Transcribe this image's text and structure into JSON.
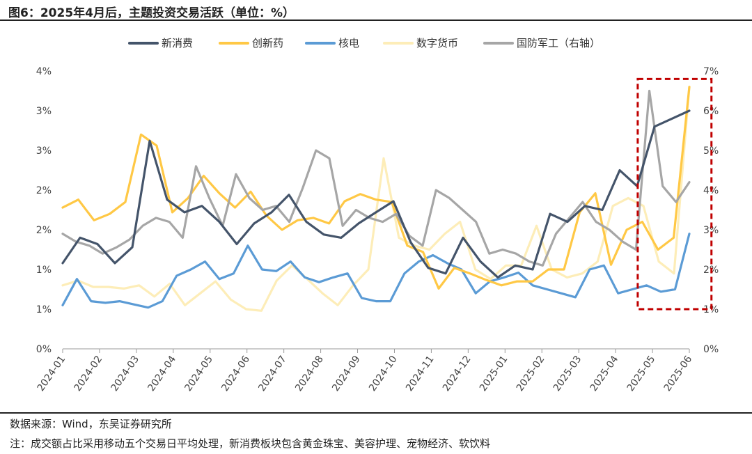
{
  "header": {
    "title": "图6：2025年4月后，主题投资交易活跃（单位：%）"
  },
  "footer": {
    "source": "数据来源：Wind，东吴证券研究所",
    "note": "注：成交额占比采用移动五个交易日平均处理，新消费板块包含黄金珠宝、美容护理、宠物经济、软饮料"
  },
  "colors": {
    "新消费": "#44546a",
    "创新药": "#ffc845",
    "核电": "#5b9bd5",
    "数字货币": "#fdedb8",
    "国防军工": "#a6a6a6",
    "highlight": "#c00000"
  },
  "chart_data": {
    "type": "line",
    "x_labels": [
      "2024-01",
      "2024-02",
      "2024-03",
      "2024-04",
      "2024-05",
      "2024-06",
      "2024-07",
      "2024-08",
      "2024-09",
      "2024-10",
      "2024-11",
      "2024-12",
      "2025-01",
      "2025-02",
      "2025-03",
      "2025-04",
      "2025-05",
      "2025-06"
    ],
    "left_axis": {
      "ticks": [
        "0%",
        "1%",
        "1%",
        "2%",
        "2%",
        "3%",
        "3%",
        "4%"
      ],
      "range": [
        0,
        3.5
      ]
    },
    "right_axis": {
      "ticks": [
        "0%",
        "1%",
        "2%",
        "3%",
        "4%",
        "5%",
        "6%",
        "7%"
      ],
      "range": [
        0,
        7
      ]
    },
    "highlight_box": {
      "x_from": 15.6,
      "x_to": 17.6,
      "y_from": 0.5,
      "y_to": 3.4,
      "axis": "left"
    },
    "series": [
      {
        "name": "新消费",
        "axis": "left",
        "values": [
          1.08,
          1.4,
          1.32,
          1.08,
          1.28,
          2.62,
          1.88,
          1.72,
          1.8,
          1.6,
          1.32,
          1.58,
          1.72,
          1.94,
          1.6,
          1.44,
          1.4,
          1.58,
          1.72,
          1.86,
          1.34,
          1.02,
          0.95,
          1.4,
          1.1,
          0.9,
          1.05,
          1.0,
          1.7,
          1.6,
          1.8,
          1.75,
          2.25,
          2.05,
          2.8,
          2.9,
          3.0
        ]
      },
      {
        "name": "创新药",
        "axis": "left",
        "values": [
          1.78,
          1.88,
          1.62,
          1.7,
          1.85,
          2.7,
          2.56,
          1.72,
          1.9,
          2.18,
          1.96,
          1.78,
          1.98,
          1.68,
          1.5,
          1.62,
          1.65,
          1.58,
          1.86,
          1.95,
          1.88,
          1.85,
          1.3,
          1.22,
          0.76,
          1.02,
          0.95,
          0.87,
          0.8,
          0.85,
          0.85,
          1.0,
          1.0,
          1.72,
          1.96,
          1.06,
          1.5,
          1.6,
          1.25,
          1.4,
          3.3
        ]
      },
      {
        "name": "核电",
        "axis": "left",
        "values": [
          0.55,
          0.88,
          0.6,
          0.58,
          0.6,
          0.56,
          0.52,
          0.6,
          0.92,
          1.0,
          1.1,
          0.88,
          0.95,
          1.3,
          1.0,
          0.98,
          1.1,
          0.9,
          0.84,
          0.9,
          0.95,
          0.64,
          0.6,
          0.6,
          0.95,
          1.1,
          1.18,
          1.08,
          1.0,
          0.7,
          0.85,
          0.9,
          0.96,
          0.8,
          0.75,
          0.7,
          0.65,
          1.0,
          1.05,
          0.7,
          0.75,
          0.8,
          0.72,
          0.75,
          1.45
        ]
      },
      {
        "name": "数字货币",
        "axis": "left",
        "values": [
          0.8,
          0.86,
          0.78,
          0.78,
          0.76,
          0.8,
          0.66,
          0.82,
          0.55,
          0.7,
          0.85,
          0.62,
          0.5,
          0.48,
          0.86,
          1.05,
          0.88,
          0.7,
          0.55,
          0.8,
          1.0,
          2.4,
          1.4,
          1.3,
          1.25,
          1.45,
          1.6,
          1.0,
          0.88,
          1.05,
          1.05,
          1.55,
          1.0,
          0.9,
          0.95,
          1.1,
          1.8,
          1.9,
          1.8,
          1.1,
          0.95,
          3.3
        ]
      },
      {
        "name": "国防军工",
        "axis": "right",
        "values": [
          2.9,
          2.7,
          2.6,
          2.4,
          2.55,
          2.75,
          3.1,
          3.3,
          3.2,
          2.8,
          4.6,
          3.8,
          3.1,
          4.4,
          3.8,
          3.5,
          3.6,
          3.2,
          4.05,
          5.0,
          4.8,
          3.1,
          3.5,
          3.3,
          3.2,
          3.4,
          2.85,
          2.6,
          4.0,
          3.8,
          3.5,
          3.2,
          2.4,
          2.5,
          2.4,
          2.2,
          2.1,
          2.9,
          3.3,
          3.7,
          3.2,
          3.0,
          2.7,
          2.5,
          6.5,
          4.1,
          3.7,
          4.2
        ]
      }
    ]
  }
}
